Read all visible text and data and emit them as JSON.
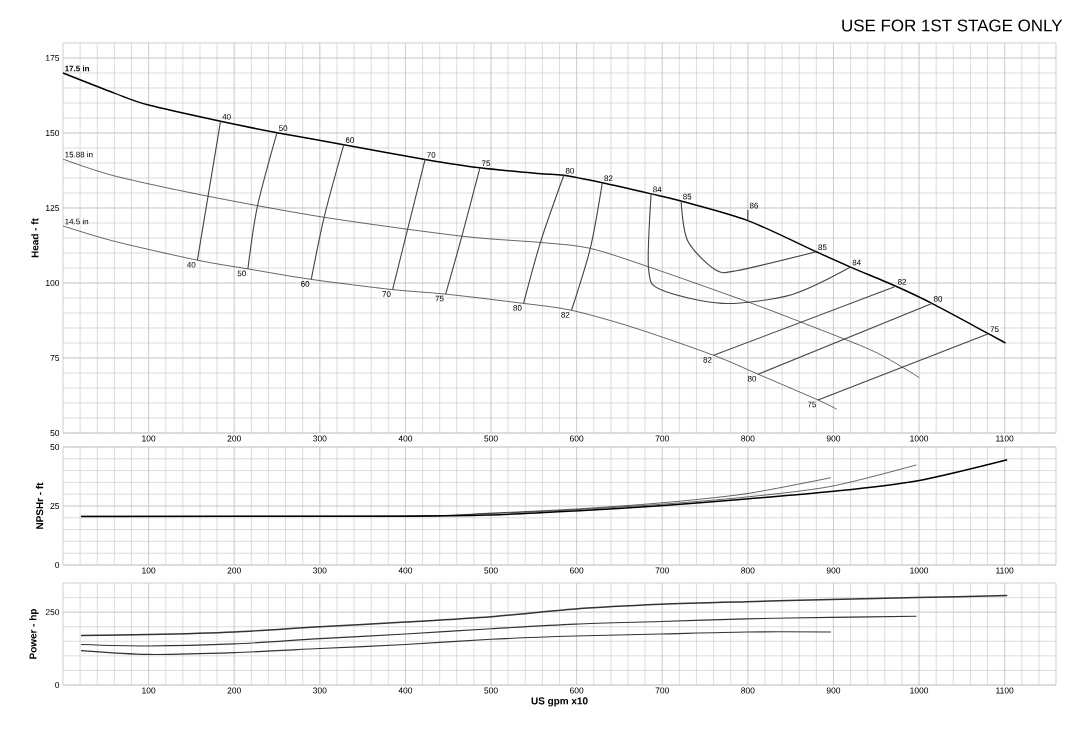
{
  "chart_data": [
    {
      "type": "line",
      "title": "USE FOR 1ST STAGE ONLY",
      "ylabel": "Head - ft",
      "xlim": [
        0,
        1160
      ],
      "ylim": [
        50,
        180
      ],
      "xticks": [
        100,
        200,
        300,
        400,
        500,
        600,
        700,
        800,
        900,
        1000,
        1100
      ],
      "yticks": [
        50,
        75,
        100,
        125,
        150,
        175
      ],
      "grid": true,
      "series": [
        {
          "name": "17.5 in",
          "color": "#000000",
          "x": [
            0,
            60,
            100,
            184,
            250,
            328,
            423,
            487,
            555,
            585,
            630,
            687,
            722,
            800,
            880,
            920,
            973,
            1015,
            1081,
            1101
          ],
          "values": [
            170,
            163.3,
            159.3,
            153.9,
            150.1,
            146.1,
            141.2,
            138.4,
            136.5,
            135.9,
            133.4,
            129.7,
            127.3,
            120.8,
            110.4,
            105.3,
            98.9,
            93.2,
            83.1,
            80
          ]
        },
        {
          "name": "15.88 in",
          "color": "#000000",
          "x": [
            0,
            60,
            168,
            305,
            466,
            558,
            615,
            685,
            799,
            868,
            948,
            1000
          ],
          "values": [
            141.3,
            135.7,
            129,
            121.9,
            115.6,
            113.5,
            111.6,
            105.3,
            93.8,
            86.3,
            77.1,
            68.5
          ]
        },
        {
          "name": "14.5 in",
          "color": "#000000",
          "x": [
            0,
            60,
            157,
            216,
            290,
            385,
            447,
            538,
            594,
            667,
            760,
            812,
            882,
            904
          ],
          "values": [
            119,
            113.9,
            107.6,
            104.7,
            101.2,
            97.8,
            96.3,
            93.2,
            90.9,
            85.1,
            75.9,
            69.6,
            61,
            57.9
          ]
        },
        {
          "color": "#444444",
          "x": [
            184,
            157
          ],
          "values": [
            153.9,
            107.6
          ]
        },
        {
          "color": "#444444",
          "x": [
            250,
            227,
            216
          ],
          "values": [
            150.1,
            125.4,
            104.7
          ]
        },
        {
          "color": "#444444",
          "x": [
            328,
            305,
            290
          ],
          "values": [
            146.1,
            121.9,
            101.2
          ]
        },
        {
          "color": "#444444",
          "x": [
            423,
            402,
            385
          ],
          "values": [
            141.2,
            117.3,
            97.8
          ]
        },
        {
          "color": "#444444",
          "x": [
            487,
            466,
            447
          ],
          "values": [
            138.4,
            115.6,
            96.3
          ]
        },
        {
          "color": "#444444",
          "x": [
            585,
            558,
            538
          ],
          "values": [
            135.9,
            113.8,
            93.2
          ]
        },
        {
          "color": "#444444",
          "x": [
            630,
            616,
            594
          ],
          "values": [
            133.4,
            111.6,
            90.9
          ]
        },
        {
          "color": "#444444",
          "x": [
            687,
            684,
            698,
            770,
            851,
            920
          ],
          "values": [
            129.7,
            104.7,
            97.8,
            93.2,
            96.1,
            105.3
          ]
        },
        {
          "color": "#444444",
          "x": [
            722,
            730,
            762,
            787,
            880
          ],
          "values": [
            127.3,
            113.9,
            104.4,
            104.1,
            110.4
          ]
        },
        {
          "color": "#444444",
          "x": [
            800,
            800
          ],
          "values": [
            124.3,
            120.8
          ]
        },
        {
          "color": "#444444",
          "x": [
            973,
            760
          ],
          "values": [
            98.9,
            75.9
          ]
        },
        {
          "color": "#444444",
          "x": [
            1015,
            812
          ],
          "values": [
            93.2,
            69.6
          ]
        },
        {
          "color": "#444444",
          "x": [
            1081,
            882
          ],
          "values": [
            83.1,
            61
          ]
        }
      ],
      "annotations": [
        {
          "text": "40",
          "x": 184,
          "y": 153.9
        },
        {
          "text": "40",
          "x": 157,
          "y": 107.6
        },
        {
          "text": "50",
          "x": 250,
          "y": 150.1
        },
        {
          "text": "50",
          "x": 216,
          "y": 104.7
        },
        {
          "text": "60",
          "x": 328,
          "y": 146.1
        },
        {
          "text": "60",
          "x": 290,
          "y": 101.2
        },
        {
          "text": "70",
          "x": 423,
          "y": 141.2
        },
        {
          "text": "70",
          "x": 385,
          "y": 97.8
        },
        {
          "text": "75",
          "x": 487,
          "y": 138.4
        },
        {
          "text": "75",
          "x": 447,
          "y": 96.3
        },
        {
          "text": "80",
          "x": 585,
          "y": 135.9
        },
        {
          "text": "80",
          "x": 538,
          "y": 93.2
        },
        {
          "text": "82",
          "x": 630,
          "y": 133.4
        },
        {
          "text": "82",
          "x": 594,
          "y": 90.9
        },
        {
          "text": "84",
          "x": 687,
          "y": 129.7
        },
        {
          "text": "85",
          "x": 722,
          "y": 127.3
        },
        {
          "text": "86",
          "x": 800,
          "y": 124.3
        },
        {
          "text": "85",
          "x": 880,
          "y": 110.4
        },
        {
          "text": "84",
          "x": 920,
          "y": 105.3
        },
        {
          "text": "82",
          "x": 973,
          "y": 98.9
        },
        {
          "text": "80",
          "x": 1015,
          "y": 93.2
        },
        {
          "text": "75",
          "x": 1081,
          "y": 83.1
        },
        {
          "text": "82",
          "x": 760,
          "y": 75.9
        },
        {
          "text": "80",
          "x": 812,
          "y": 69.6
        },
        {
          "text": "75",
          "x": 882,
          "y": 61
        }
      ]
    },
    {
      "type": "line",
      "ylabel": "NPSHr - ft",
      "xlim": [
        0,
        1160
      ],
      "ylim": [
        0,
        50
      ],
      "xticks": [
        100,
        200,
        300,
        400,
        500,
        600,
        700,
        800,
        900,
        1000,
        1100
      ],
      "yticks": [
        0,
        25,
        50
      ],
      "grid": true,
      "series": [
        {
          "color": "#000000",
          "x": [
            21,
            400,
            500,
            598,
            698,
            798,
            897,
            997,
            1103
          ],
          "values": [
            20.6,
            20.7,
            21.2,
            22.9,
            25.1,
            28,
            31.1,
            35.6,
            44.6
          ]
        },
        {
          "color": "#000000",
          "x": [
            21,
            400,
            500,
            598,
            698,
            798,
            897,
            997
          ],
          "values": [
            20.6,
            20.7,
            21.8,
            23.4,
            25.7,
            28.8,
            33.3,
            42.4
          ]
        },
        {
          "color": "#000000",
          "x": [
            21,
            400,
            500,
            598,
            698,
            798,
            897
          ],
          "values": [
            20.6,
            20.7,
            22,
            23.7,
            26.3,
            30.2,
            37
          ]
        }
      ]
    },
    {
      "type": "line",
      "ylabel": "Power - hp",
      "xlabel": "US gpm x10",
      "xlim": [
        0,
        1160
      ],
      "ylim": [
        0,
        350
      ],
      "xticks": [
        100,
        200,
        300,
        400,
        500,
        600,
        700,
        800,
        900,
        1000,
        1100
      ],
      "yticks": [
        0,
        250
      ],
      "grid": true,
      "series": [
        {
          "color": "#333333",
          "x": [
            21,
            100,
            200,
            300,
            400,
            500,
            598,
            698,
            798,
            897,
            997,
            1103
          ],
          "values": [
            170,
            173,
            182,
            200,
            216,
            234,
            261,
            277,
            286,
            293,
            300,
            307
          ]
        },
        {
          "color": "#333333",
          "x": [
            21,
            100,
            200,
            300,
            400,
            500,
            598,
            698,
            798,
            897,
            997
          ],
          "values": [
            139,
            134,
            141,
            159,
            175,
            193,
            209,
            218,
            227,
            232,
            236
          ]
        },
        {
          "color": "#333333",
          "x": [
            21,
            100,
            200,
            300,
            400,
            500,
            598,
            698,
            798,
            897
          ],
          "values": [
            118,
            105,
            111,
            125,
            139,
            157,
            168,
            175,
            182,
            182
          ]
        }
      ]
    }
  ]
}
